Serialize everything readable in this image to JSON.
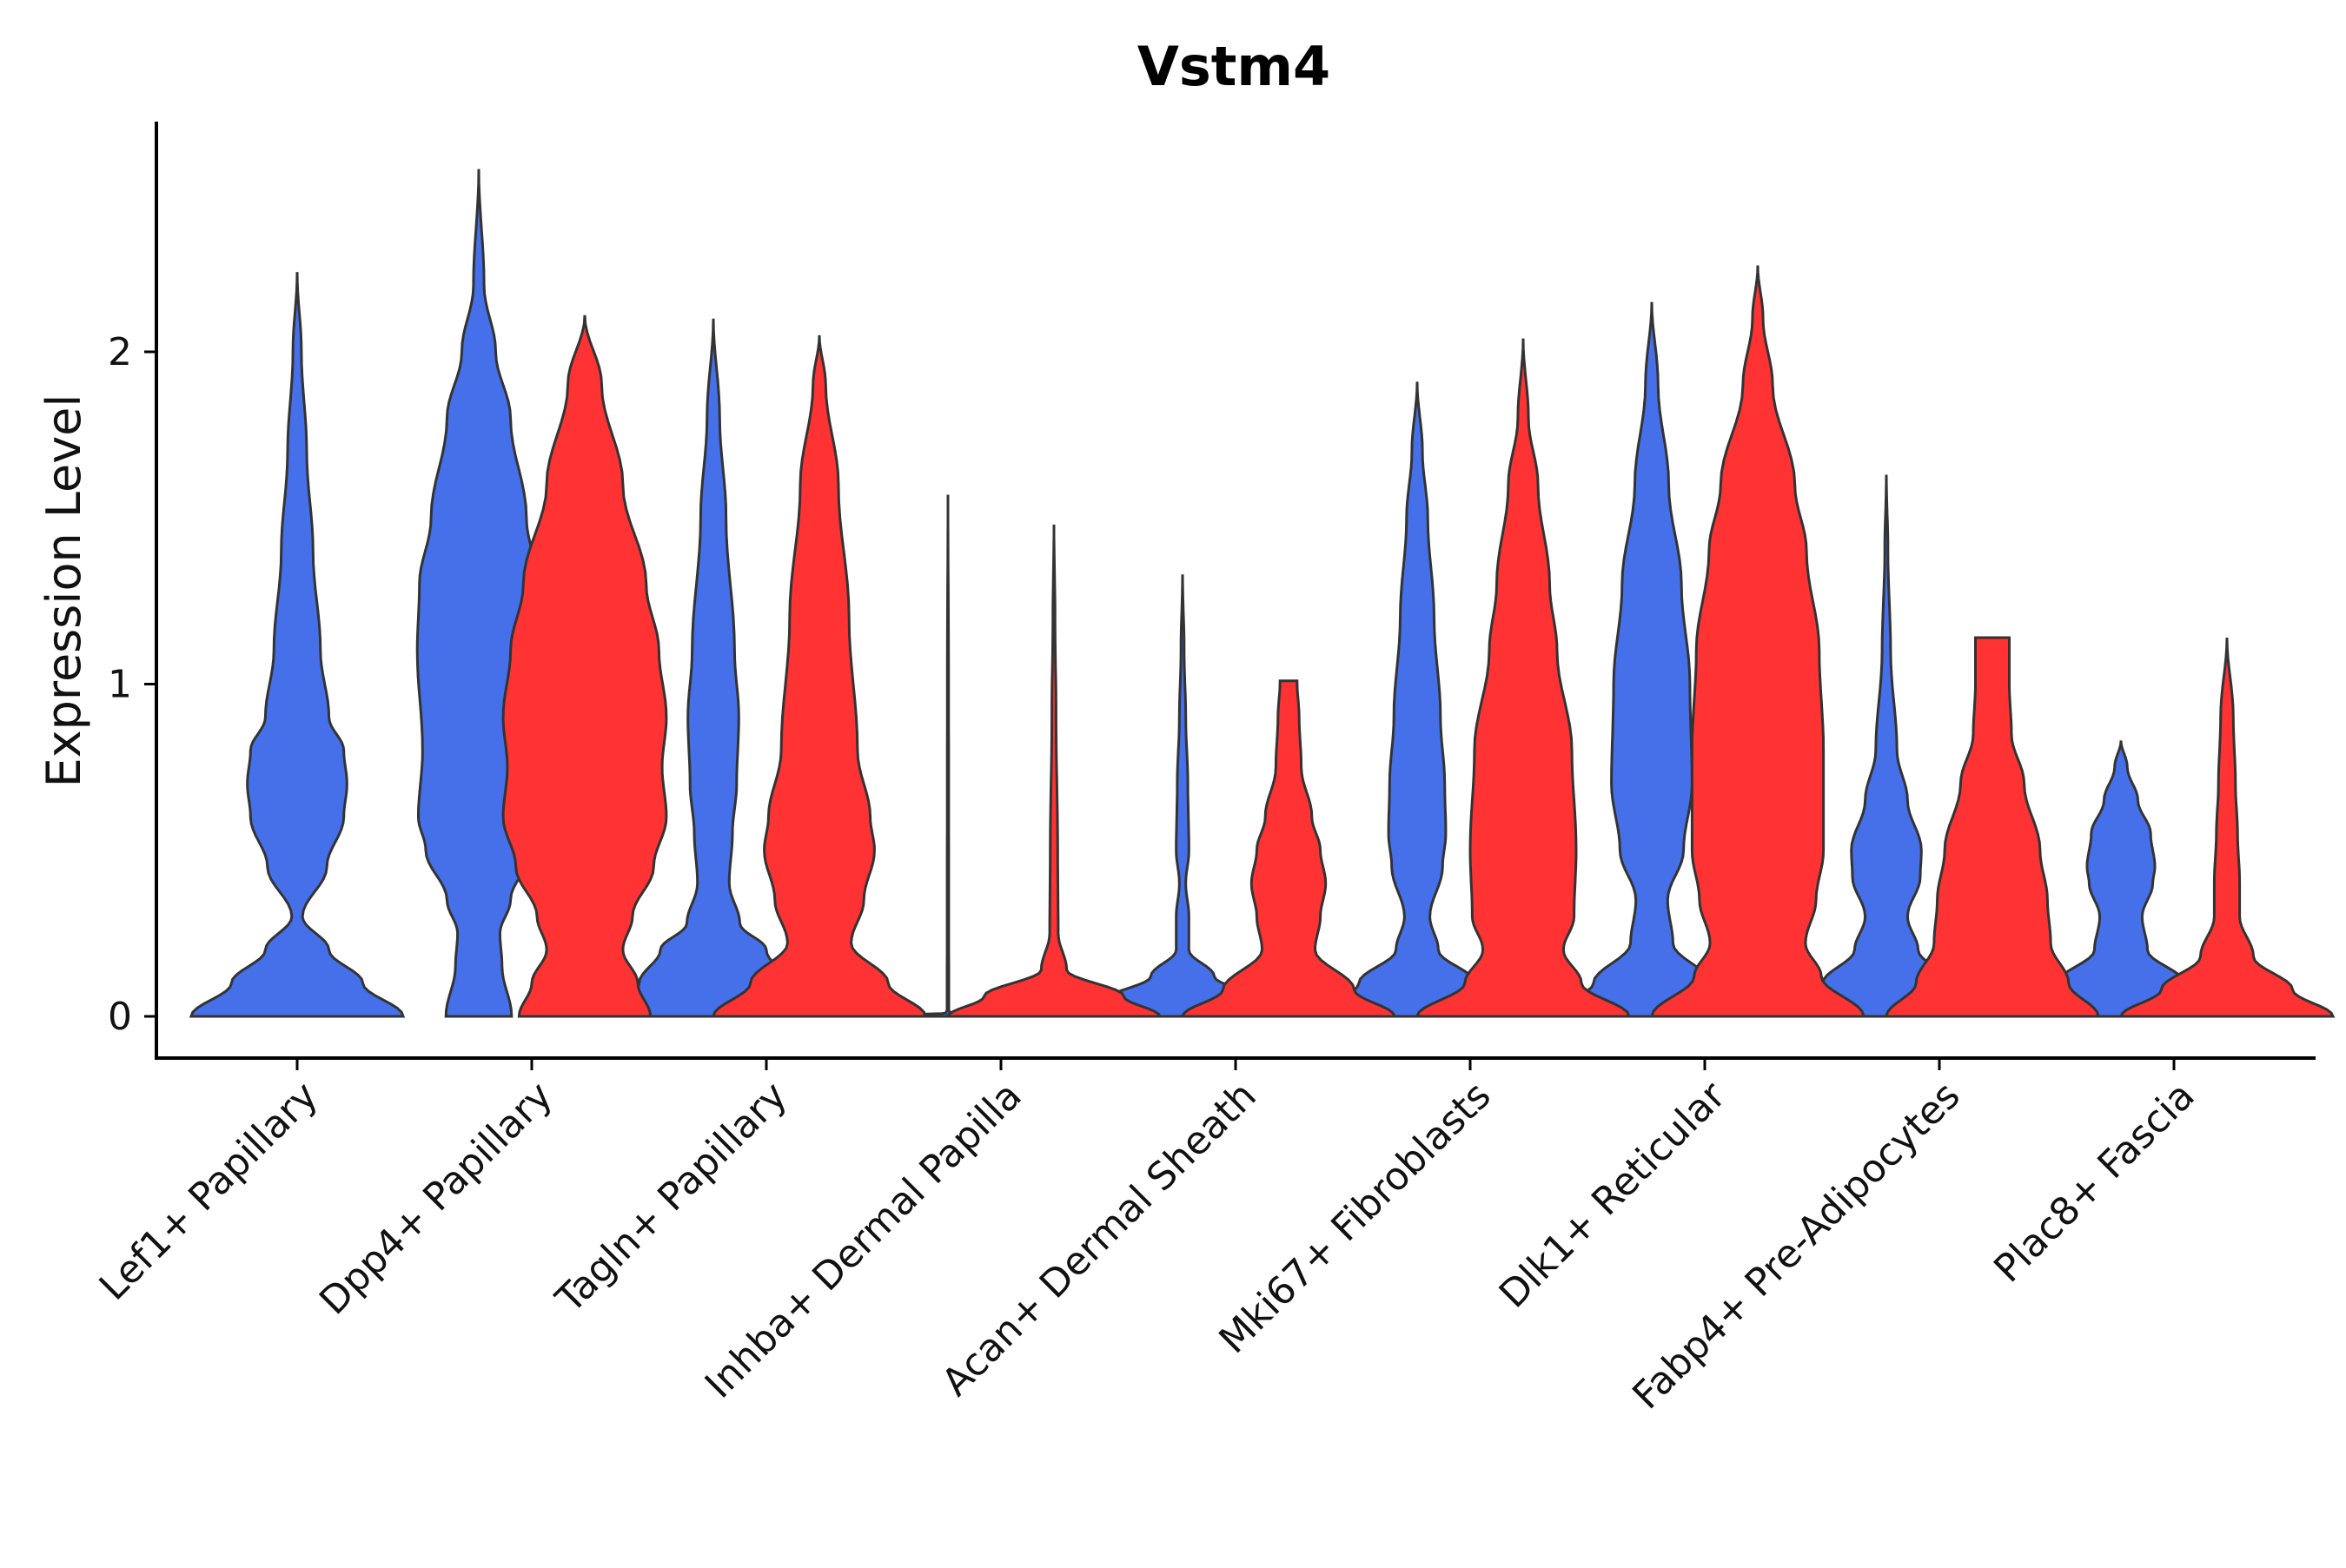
{
  "chart_data": {
    "type": "violin",
    "title": "Vstm4",
    "xlabel": "",
    "ylabel": "Expression Level",
    "ylim": [
      -0.13,
      2.7
    ],
    "yticks": [
      0,
      1,
      2
    ],
    "categories": [
      "Lef1+ Papillary",
      "Dpp4+ Papillary",
      "Tagln+ Papillary",
      "Inhba+ Dermal Papilla",
      "Acan+ Dermal Sheath",
      "Mki67+ Fibroblasts",
      "Dlk1+ Reticular",
      "Fabp4+ Pre-Adipocytes",
      "Plac8+ Fascia"
    ],
    "colors": {
      "group1": "#4570EA",
      "group2": "#FF3333",
      "outline": "#333333"
    },
    "series": [
      {
        "name": "group1",
        "color": "#4570EA",
        "violins": [
          {
            "category": "Lef1+ Papillary",
            "max": 2.24,
            "profile": [
              [
                0,
                1.0
              ],
              [
                0.1,
                0.62
              ],
              [
                0.2,
                0.3
              ],
              [
                0.3,
                0.05
              ],
              [
                0.45,
                0.28
              ],
              [
                0.6,
                0.44
              ],
              [
                0.7,
                0.47
              ],
              [
                0.8,
                0.44
              ],
              [
                0.9,
                0.3
              ],
              [
                1.1,
                0.22
              ],
              [
                1.4,
                0.15
              ],
              [
                1.7,
                0.09
              ],
              [
                2.0,
                0.04
              ],
              [
                2.24,
                0.0
              ]
            ]
          },
          {
            "category": "Dpp4+ Papillary",
            "max": 2.55,
            "profile": [
              [
                0,
                0.31
              ],
              [
                0.15,
                0.22
              ],
              [
                0.25,
                0.2
              ],
              [
                0.35,
                0.3
              ],
              [
                0.5,
                0.5
              ],
              [
                0.6,
                0.57
              ],
              [
                0.8,
                0.53
              ],
              [
                1.1,
                0.58
              ],
              [
                1.3,
                0.56
              ],
              [
                1.5,
                0.45
              ],
              [
                1.8,
                0.3
              ],
              [
                2.0,
                0.16
              ],
              [
                2.2,
                0.05
              ],
              [
                2.55,
                0.0
              ]
            ]
          },
          {
            "category": "Tagln+ Papillary",
            "max": 2.1,
            "profile": [
              [
                0,
                0.98
              ],
              [
                0.1,
                0.7
              ],
              [
                0.2,
                0.5
              ],
              [
                0.28,
                0.25
              ],
              [
                0.4,
                0.15
              ],
              [
                0.55,
                0.18
              ],
              [
                0.7,
                0.22
              ],
              [
                0.9,
                0.24
              ],
              [
                1.1,
                0.2
              ],
              [
                1.5,
                0.12
              ],
              [
                1.8,
                0.06
              ],
              [
                2.1,
                0.0
              ]
            ]
          },
          {
            "category": "Inhba+ Dermal Papilla",
            "max": 1.57,
            "profile": [
              [
                0,
                1.0
              ],
              [
                0.01,
                0.02
              ],
              [
                0.02,
                0.008
              ],
              [
                0.5,
                0.007
              ],
              [
                1.0,
                0.006
              ],
              [
                1.57,
                0.0
              ]
            ]
          },
          {
            "category": "Acan+ Dermal Sheath",
            "max": 1.33,
            "profile": [
              [
                0,
                1.0
              ],
              [
                0.05,
                0.72
              ],
              [
                0.12,
                0.3
              ],
              [
                0.2,
                0.06
              ],
              [
                0.3,
                0.06
              ],
              [
                0.4,
                0.03
              ],
              [
                0.5,
                0.06
              ],
              [
                0.7,
                0.05
              ],
              [
                0.9,
                0.03
              ],
              [
                1.1,
                0.015
              ],
              [
                1.33,
                0.0
              ]
            ]
          },
          {
            "category": "Mki67+ Fibroblasts",
            "max": 1.91,
            "profile": [
              [
                0,
                1.0
              ],
              [
                0.1,
                0.55
              ],
              [
                0.2,
                0.2
              ],
              [
                0.3,
                0.12
              ],
              [
                0.45,
                0.24
              ],
              [
                0.55,
                0.27
              ],
              [
                0.7,
                0.26
              ],
              [
                0.9,
                0.22
              ],
              [
                1.2,
                0.16
              ],
              [
                1.5,
                0.1
              ],
              [
                1.7,
                0.05
              ],
              [
                1.91,
                0.0
              ]
            ]
          },
          {
            "category": "Dlk1+ Reticular",
            "max": 2.15,
            "profile": [
              [
                0,
                1.0
              ],
              [
                0.1,
                0.55
              ],
              [
                0.22,
                0.2
              ],
              [
                0.35,
                0.15
              ],
              [
                0.5,
                0.3
              ],
              [
                0.7,
                0.38
              ],
              [
                1.0,
                0.36
              ],
              [
                1.3,
                0.28
              ],
              [
                1.6,
                0.16
              ],
              [
                1.9,
                0.06
              ],
              [
                2.15,
                0.0
              ]
            ]
          },
          {
            "category": "Fabp4+ Pre-Adipocytes",
            "max": 1.63,
            "profile": [
              [
                0,
                1.0
              ],
              [
                0.1,
                0.6
              ],
              [
                0.2,
                0.3
              ],
              [
                0.3,
                0.2
              ],
              [
                0.42,
                0.32
              ],
              [
                0.5,
                0.33
              ],
              [
                0.65,
                0.2
              ],
              [
                0.8,
                0.1
              ],
              [
                1.1,
                0.04
              ],
              [
                1.4,
                0.015
              ],
              [
                1.63,
                0.0
              ]
            ]
          },
          {
            "category": "Plac8+ Fascia",
            "max": 0.83,
            "profile": [
              [
                0,
                1.0
              ],
              [
                0.1,
                0.6
              ],
              [
                0.2,
                0.25
              ],
              [
                0.3,
                0.2
              ],
              [
                0.4,
                0.3
              ],
              [
                0.45,
                0.32
              ],
              [
                0.55,
                0.28
              ],
              [
                0.65,
                0.16
              ],
              [
                0.75,
                0.06
              ],
              [
                0.83,
                0.0
              ]
            ]
          }
        ]
      },
      {
        "name": "group2",
        "color": "#FF3333",
        "violins": [
          {
            "category": "Dpp4+ Papillary",
            "max": 2.11,
            "profile": [
              [
                0,
                0.62
              ],
              [
                0.1,
                0.5
              ],
              [
                0.2,
                0.36
              ],
              [
                0.3,
                0.45
              ],
              [
                0.45,
                0.65
              ],
              [
                0.6,
                0.77
              ],
              [
                0.75,
                0.73
              ],
              [
                0.9,
                0.77
              ],
              [
                1.1,
                0.7
              ],
              [
                1.3,
                0.58
              ],
              [
                1.6,
                0.36
              ],
              [
                1.9,
                0.16
              ],
              [
                2.11,
                0.0
              ]
            ]
          },
          {
            "category": "Tagln+ Papillary",
            "max": 2.05,
            "profile": [
              [
                0,
                1.0
              ],
              [
                0.1,
                0.65
              ],
              [
                0.22,
                0.3
              ],
              [
                0.35,
                0.42
              ],
              [
                0.5,
                0.52
              ],
              [
                0.6,
                0.48
              ],
              [
                0.8,
                0.36
              ],
              [
                1.2,
                0.28
              ],
              [
                1.6,
                0.18
              ],
              [
                1.9,
                0.06
              ],
              [
                2.05,
                0.0
              ]
            ]
          },
          {
            "category": "Inhba+ Dermal Papilla",
            "max": 1.48,
            "profile": [
              [
                0,
                1.0
              ],
              [
                0.06,
                0.66
              ],
              [
                0.14,
                0.12
              ],
              [
                0.25,
                0.04
              ],
              [
                0.5,
                0.035
              ],
              [
                0.9,
                0.02
              ],
              [
                1.2,
                0.01
              ],
              [
                1.48,
                0.0
              ]
            ]
          },
          {
            "category": "Acan+ Dermal Sheath",
            "max": 1.01,
            "profile": [
              [
                0,
                1.0
              ],
              [
                0.08,
                0.62
              ],
              [
                0.2,
                0.25
              ],
              [
                0.3,
                0.3
              ],
              [
                0.4,
                0.35
              ],
              [
                0.5,
                0.3
              ],
              [
                0.6,
                0.22
              ],
              [
                0.75,
                0.12
              ],
              [
                0.9,
                0.1
              ],
              [
                1.01,
                0.08
              ]
            ]
          },
          {
            "category": "Mki67+ Fibroblasts",
            "max": 2.04,
            "profile": [
              [
                0,
                1.0
              ],
              [
                0.1,
                0.55
              ],
              [
                0.2,
                0.38
              ],
              [
                0.3,
                0.48
              ],
              [
                0.5,
                0.5
              ],
              [
                0.8,
                0.46
              ],
              [
                1.1,
                0.32
              ],
              [
                1.3,
                0.25
              ],
              [
                1.6,
                0.14
              ],
              [
                1.8,
                0.05
              ],
              [
                2.04,
                0.0
              ]
            ]
          },
          {
            "category": "Dlk1+ Reticular",
            "max": 2.26,
            "profile": [
              [
                0,
                1.0
              ],
              [
                0.12,
                0.6
              ],
              [
                0.22,
                0.45
              ],
              [
                0.35,
                0.55
              ],
              [
                0.5,
                0.62
              ],
              [
                0.8,
                0.62
              ],
              [
                1.1,
                0.58
              ],
              [
                1.4,
                0.46
              ],
              [
                1.6,
                0.35
              ],
              [
                1.9,
                0.14
              ],
              [
                2.1,
                0.05
              ],
              [
                2.26,
                0.0
              ]
            ]
          },
          {
            "category": "Fabp4+ Pre-Adipocytes",
            "max": 1.14,
            "profile": [
              [
                0,
                1.0
              ],
              [
                0.1,
                0.72
              ],
              [
                0.22,
                0.55
              ],
              [
                0.35,
                0.52
              ],
              [
                0.5,
                0.45
              ],
              [
                0.7,
                0.3
              ],
              [
                0.85,
                0.18
              ],
              [
                1.0,
                0.16
              ],
              [
                1.14,
                0.16
              ]
            ]
          },
          {
            "category": "Plac8+ Fascia",
            "max": 1.14,
            "profile": [
              [
                0,
                1.0
              ],
              [
                0.08,
                0.62
              ],
              [
                0.18,
                0.25
              ],
              [
                0.3,
                0.12
              ],
              [
                0.4,
                0.12
              ],
              [
                0.55,
                0.1
              ],
              [
                0.7,
                0.08
              ],
              [
                0.9,
                0.06
              ],
              [
                1.14,
                0.0
              ]
            ]
          }
        ]
      }
    ]
  }
}
